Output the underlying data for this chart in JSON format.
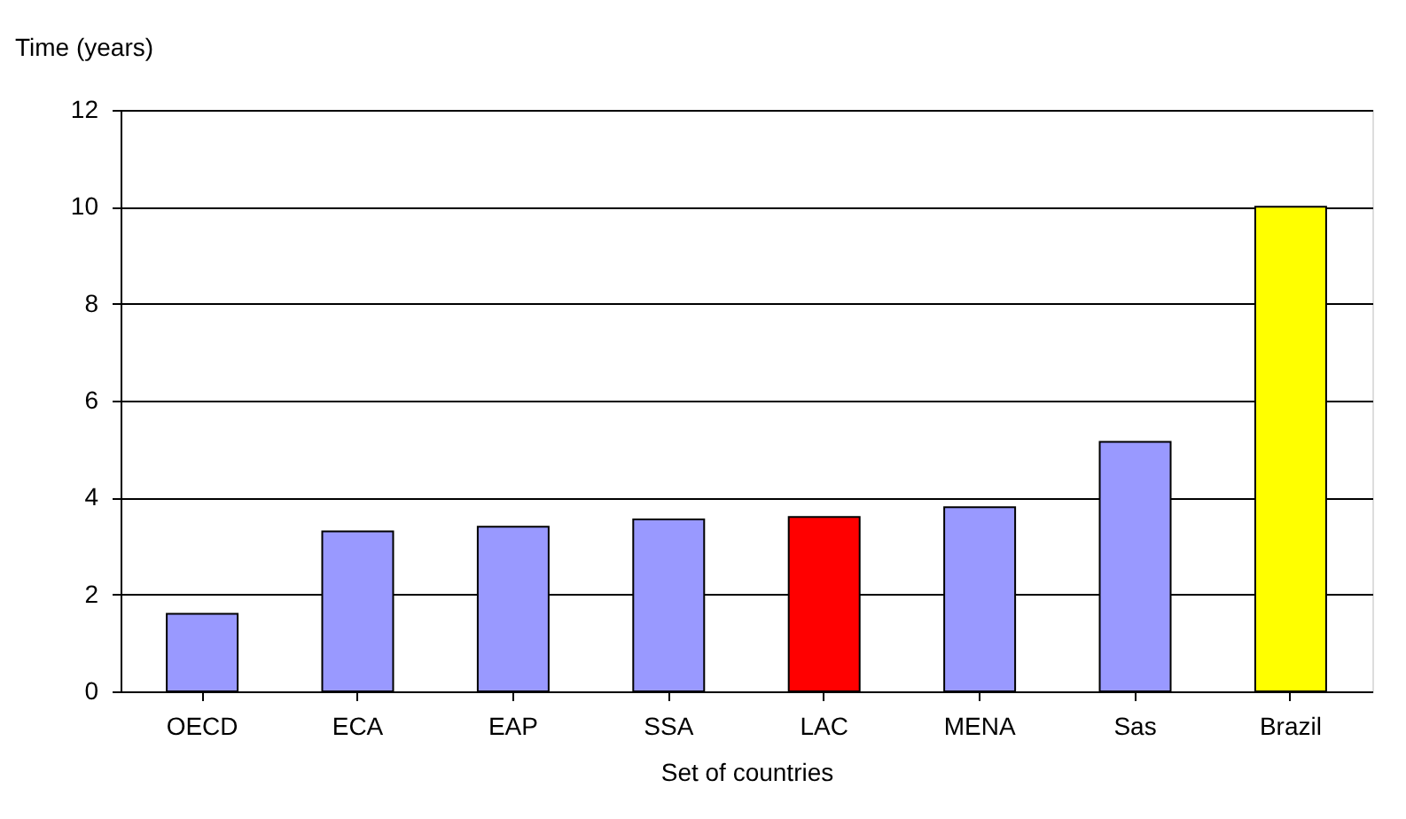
{
  "chart_data": {
    "type": "bar",
    "xlabel": "Set of countries",
    "ylabel": "Time (years)",
    "categories": [
      "OECD",
      "ECA",
      "EAP",
      "SSA",
      "LAC",
      "MENA",
      "Sas",
      "Brazil"
    ],
    "values": [
      1.6,
      3.3,
      3.4,
      3.55,
      3.6,
      3.8,
      5.15,
      10.0
    ],
    "colors": [
      "#9999ff",
      "#9999ff",
      "#9999ff",
      "#9999ff",
      "#ff0000",
      "#9999ff",
      "#9999ff",
      "#ffff00"
    ],
    "ylim": [
      0,
      12
    ],
    "yticks": [
      0,
      2,
      4,
      6,
      8,
      10,
      12
    ],
    "grid": "y",
    "legend": false
  }
}
